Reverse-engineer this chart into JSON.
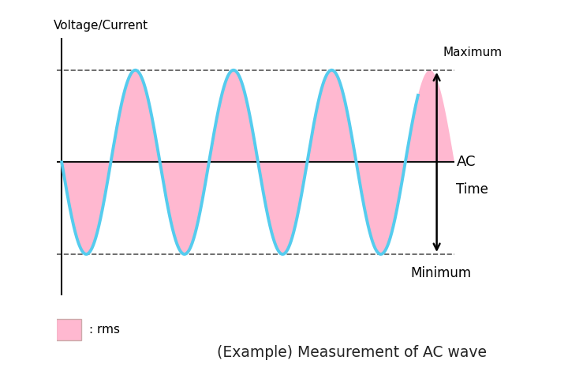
{
  "title": "(Example) Measurement of AC wave",
  "ylabel": "Voltage/Current",
  "wave_color": "#55CCEE",
  "fill_color": "#FFB8D0",
  "fill_alpha": 1.0,
  "amplitude": 1.0,
  "background_color": "#FFFFFF",
  "dashed_color": "#555555",
  "axis_color": "#111111",
  "wave_linewidth": 2.8,
  "caption_bg": "#D6EEF8",
  "rms_label": ": rms"
}
